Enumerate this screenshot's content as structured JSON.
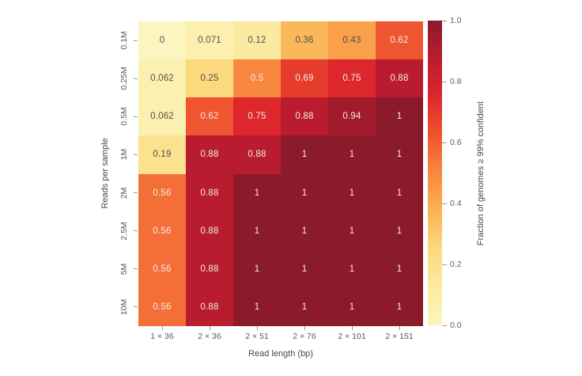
{
  "figure": {
    "background_color": "#ffffff",
    "tick_color": "#9a9a9a",
    "tick_text_color": "#595959",
    "axis_label_color": "#474747"
  },
  "chart_data": {
    "type": "heatmap",
    "title": "",
    "xlabel": "Read length (bp)",
    "ylabel": "Reads per sample",
    "x_categories": [
      "1 × 36",
      "2 × 36",
      "2 × 51",
      "2 × 76",
      "2 × 101",
      "2 × 151"
    ],
    "y_categories": [
      "0.1M",
      "0.25M",
      "0.5M",
      "1M",
      "2M",
      "2.5M",
      "5M",
      "10M"
    ],
    "values": [
      [
        0,
        0.071,
        0.12,
        0.36,
        0.43,
        0.62
      ],
      [
        0.062,
        0.25,
        0.5,
        0.69,
        0.75,
        0.88
      ],
      [
        0.062,
        0.62,
        0.75,
        0.88,
        0.94,
        1
      ],
      [
        0.19,
        0.88,
        0.88,
        1,
        1,
        1
      ],
      [
        0.56,
        0.88,
        1,
        1,
        1,
        1
      ],
      [
        0.56,
        0.88,
        1,
        1,
        1,
        1
      ],
      [
        0.56,
        0.88,
        1,
        1,
        1,
        1
      ],
      [
        0.56,
        0.88,
        1,
        1,
        1,
        1
      ]
    ],
    "cell_labels": [
      [
        "0",
        "0.071",
        "0.12",
        "0.36",
        "0.43",
        "0.62"
      ],
      [
        "0.062",
        "0.25",
        "0.5",
        "0.69",
        "0.75",
        "0.88"
      ],
      [
        "0.062",
        "0.62",
        "0.75",
        "0.88",
        "0.94",
        "1"
      ],
      [
        "0.19",
        "0.88",
        "0.88",
        "1",
        "1",
        "1"
      ],
      [
        "0.56",
        "0.88",
        "1",
        "1",
        "1",
        "1"
      ],
      [
        "0.56",
        "0.88",
        "1",
        "1",
        "1",
        "1"
      ],
      [
        "0.56",
        "0.88",
        "1",
        "1",
        "1",
        "1"
      ],
      [
        "0.56",
        "0.88",
        "1",
        "1",
        "1",
        "1"
      ]
    ],
    "colorbar": {
      "label": "Fraction of genomes ≥ 99% confident",
      "tick_labels": [
        "1.0",
        "0.8",
        "0.6",
        "0.4",
        "0.2",
        "0.0"
      ],
      "tick_values": [
        1.0,
        0.8,
        0.6,
        0.4,
        0.2,
        0.0
      ],
      "range": [
        0,
        1
      ]
    },
    "colormap": {
      "name": "YlOrRd",
      "stops": [
        {
          "t": 0.0,
          "color": "#fcf5c0"
        },
        {
          "t": 0.125,
          "color": "#fdeaa0"
        },
        {
          "t": 0.25,
          "color": "#fcd97d"
        },
        {
          "t": 0.375,
          "color": "#fbb355"
        },
        {
          "t": 0.5,
          "color": "#f8883f"
        },
        {
          "t": 0.625,
          "color": "#f05330"
        },
        {
          "t": 0.75,
          "color": "#dd272d"
        },
        {
          "t": 0.875,
          "color": "#bb1c2e"
        },
        {
          "t": 1.0,
          "color": "#8b1a2b"
        }
      ]
    },
    "annotation_text_colors": {
      "light": "#f5ecdf",
      "dark": "#4f4f4f"
    },
    "annotation_light_text_threshold": 0.5,
    "grid": false,
    "legend_position": "right-colorbar"
  }
}
